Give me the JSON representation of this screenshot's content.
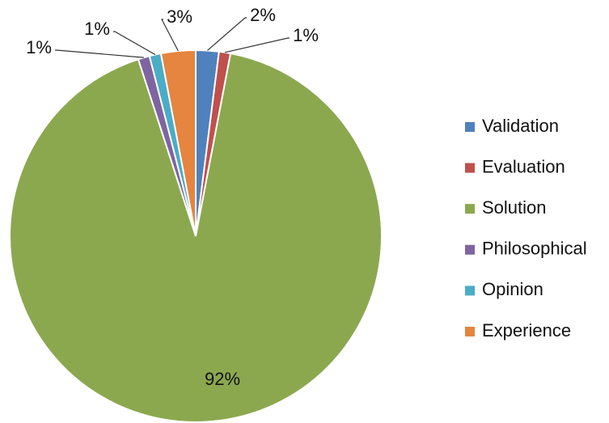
{
  "chart_data": {
    "type": "pie",
    "categories": [
      "Validation",
      "Evaluation",
      "Solution",
      "Philosophical",
      "Opinion",
      "Experience"
    ],
    "values": [
      2,
      1,
      92,
      1,
      1,
      3
    ],
    "value_labels": [
      "2%",
      "1%",
      "92%",
      "1%",
      "1%",
      "3%"
    ],
    "colors": [
      "#4f81bd",
      "#c0504d",
      "#8ba84f",
      "#8064a2",
      "#4bacc6",
      "#e5853f"
    ],
    "legend": "right"
  }
}
